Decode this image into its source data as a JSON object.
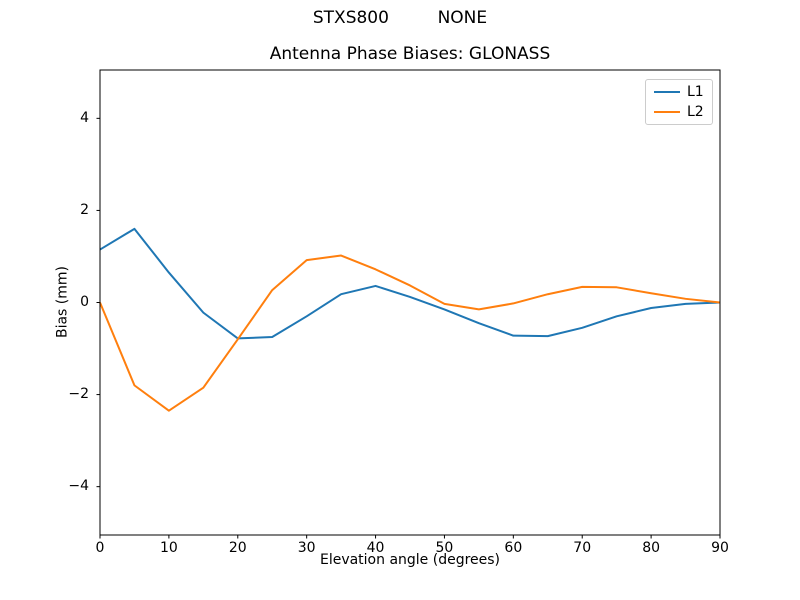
{
  "suptitle": "STXS800         NONE",
  "chart_data": {
    "type": "line",
    "title": "Antenna Phase Biases: GLONASS",
    "xlabel": "Elevation angle (degrees)",
    "ylabel": "Bias (mm)",
    "x": [
      0,
      5,
      10,
      15,
      20,
      25,
      30,
      35,
      40,
      45,
      50,
      55,
      60,
      65,
      70,
      75,
      80,
      85,
      90
    ],
    "series": [
      {
        "name": "L1",
        "color": "#1f77b4",
        "values": [
          1.15,
          1.6,
          0.65,
          -0.22,
          -0.78,
          -0.75,
          -0.3,
          0.18,
          0.36,
          0.12,
          -0.15,
          -0.45,
          -0.72,
          -0.73,
          -0.55,
          -0.3,
          -0.12,
          -0.03,
          0.0
        ]
      },
      {
        "name": "L2",
        "color": "#ff7f0e",
        "values": [
          0.0,
          -1.8,
          -2.35,
          -1.85,
          -0.8,
          0.27,
          0.92,
          1.02,
          0.72,
          0.37,
          -0.03,
          -0.15,
          -0.02,
          0.18,
          0.34,
          0.33,
          0.2,
          0.08,
          0.0
        ]
      }
    ],
    "xlim": [
      0,
      90
    ],
    "ylim": [
      -5.05,
      5.05
    ],
    "xticks": [
      0,
      10,
      20,
      30,
      40,
      50,
      60,
      70,
      80,
      90
    ],
    "yticks": [
      -4,
      -2,
      0,
      2,
      4
    ],
    "grid": false,
    "legend_position": "upper right",
    "frame_color": "#000000",
    "background_color": "#ffffff"
  }
}
